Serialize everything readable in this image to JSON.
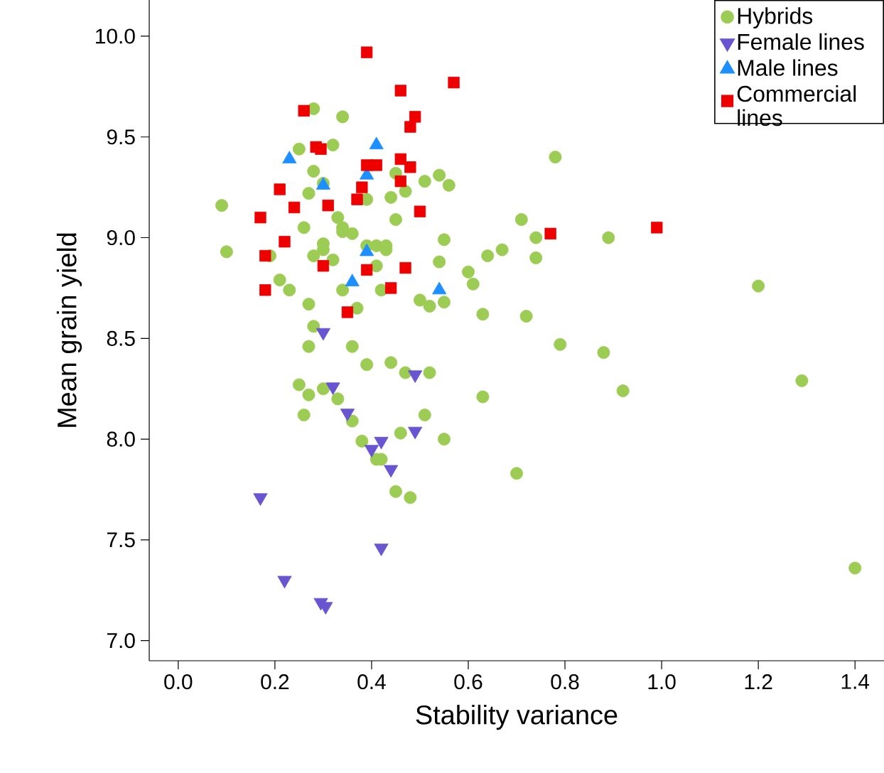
{
  "chart_data": {
    "type": "scatter",
    "xlabel": "Stability variance",
    "ylabel": "Mean grain yield",
    "xlim": [
      -0.06,
      1.46
    ],
    "ylim": [
      6.9,
      10.18
    ],
    "xticks": [
      {
        "value": 0,
        "label": "0.0"
      },
      {
        "value": 0.2,
        "label": "0.2"
      },
      {
        "value": 0.4,
        "label": "0.4"
      },
      {
        "value": 0.6,
        "label": "0.6"
      },
      {
        "value": 0.8,
        "label": "0.8"
      },
      {
        "value": 1.0,
        "label": "1.0"
      },
      {
        "value": 1.2,
        "label": "1.2"
      },
      {
        "value": 1.4,
        "label": "1.4"
      }
    ],
    "yticks": [
      {
        "value": 7,
        "label": "7.0"
      },
      {
        "value": 7.5,
        "label": "7.5"
      },
      {
        "value": 8,
        "label": "8.0"
      },
      {
        "value": 8.5,
        "label": "8.5"
      },
      {
        "value": 9,
        "label": "9.0"
      },
      {
        "value": 9.5,
        "label": "9.5"
      },
      {
        "value": 10,
        "label": "10.0"
      }
    ],
    "legend": "top right",
    "series": [
      {
        "name": "Hybrids",
        "color": "#9dcc55",
        "marker": "circle",
        "x": [
          0.28,
          0.34,
          0.32,
          0.25,
          0.28,
          0.27,
          0.3,
          0.45,
          0.51,
          0.54,
          0.56,
          0.47,
          0.44,
          0.39,
          0.09,
          0.45,
          0.33,
          0.34,
          0.34,
          0.36,
          0.26,
          0.55,
          0.1,
          0.19,
          0.28,
          0.3,
          0.3,
          0.32,
          0.39,
          0.41,
          0.43,
          0.43,
          0.41,
          0.54,
          0.21,
          0.23,
          0.34,
          0.42,
          0.5,
          0.52,
          0.55,
          0.37,
          0.27,
          0.28,
          0.27,
          0.36,
          0.39,
          0.44,
          0.78,
          0.71,
          0.74,
          0.74,
          0.89,
          0.67,
          0.64,
          0.6,
          0.61,
          0.63,
          0.72,
          0.79,
          0.88,
          1.2,
          0.47,
          0.52,
          0.25,
          0.27,
          0.3,
          0.33,
          0.26,
          0.36,
          0.38,
          0.41,
          0.42,
          0.46,
          0.51,
          0.55,
          0.45,
          0.48,
          0.63,
          0.92,
          0.7,
          1.29,
          1.4
        ],
        "values": [
          9.64,
          9.6,
          9.46,
          9.44,
          9.33,
          9.22,
          9.27,
          9.32,
          9.28,
          9.31,
          9.26,
          9.23,
          9.2,
          9.19,
          9.16,
          9.09,
          9.1,
          9.05,
          9.03,
          9.02,
          9.05,
          8.99,
          8.93,
          8.91,
          8.91,
          8.97,
          8.94,
          8.89,
          8.96,
          8.96,
          8.96,
          8.94,
          8.86,
          8.88,
          8.79,
          8.74,
          8.74,
          8.74,
          8.69,
          8.66,
          8.68,
          8.65,
          8.67,
          8.56,
          8.46,
          8.46,
          8.37,
          8.38,
          9.4,
          9.09,
          9.0,
          8.9,
          9.0,
          8.94,
          8.91,
          8.83,
          8.77,
          8.62,
          8.61,
          8.47,
          8.43,
          8.76,
          8.33,
          8.33,
          8.27,
          8.22,
          8.25,
          8.2,
          8.12,
          8.09,
          7.99,
          7.9,
          7.9,
          8.03,
          8.12,
          8.0,
          7.74,
          7.71,
          8.21,
          8.24,
          7.83,
          8.29,
          7.36
        ]
      },
      {
        "name": "Female lines",
        "color": "#6a55d0",
        "marker": "triangle down",
        "x": [
          0.3,
          0.32,
          0.35,
          0.49,
          0.49,
          0.42,
          0.4,
          0.44,
          0.17,
          0.42,
          0.22,
          0.295,
          0.305
        ],
        "values": [
          8.53,
          8.26,
          8.13,
          8.32,
          8.04,
          7.99,
          7.95,
          7.85,
          7.71,
          7.46,
          7.3,
          7.19,
          7.17
        ]
      },
      {
        "name": "Male lines",
        "color": "#1e8fff",
        "marker": "triangle",
        "x": [
          0.23,
          0.41,
          0.39,
          0.3,
          0.39,
          0.36,
          0.54
        ],
        "values": [
          9.39,
          9.46,
          9.31,
          9.26,
          8.93,
          8.78,
          8.74
        ]
      },
      {
        "name": "Commercial lines",
        "color": "#ee0000",
        "marker": "square",
        "x": [
          0.39,
          0.46,
          0.57,
          0.26,
          0.49,
          0.48,
          0.285,
          0.295,
          0.46,
          0.48,
          0.39,
          0.41,
          0.21,
          0.38,
          0.46,
          0.37,
          0.31,
          0.24,
          0.5,
          0.17,
          0.22,
          0.18,
          0.3,
          0.39,
          0.47,
          0.18,
          0.44,
          0.35,
          0.77,
          0.99
        ],
        "values": [
          9.92,
          9.73,
          9.77,
          9.63,
          9.6,
          9.55,
          9.45,
          9.44,
          9.39,
          9.35,
          9.36,
          9.36,
          9.24,
          9.25,
          9.28,
          9.19,
          9.16,
          9.15,
          9.13,
          9.1,
          8.98,
          8.91,
          8.86,
          8.84,
          8.85,
          8.74,
          8.75,
          8.63,
          9.02,
          9.05
        ]
      }
    ]
  }
}
